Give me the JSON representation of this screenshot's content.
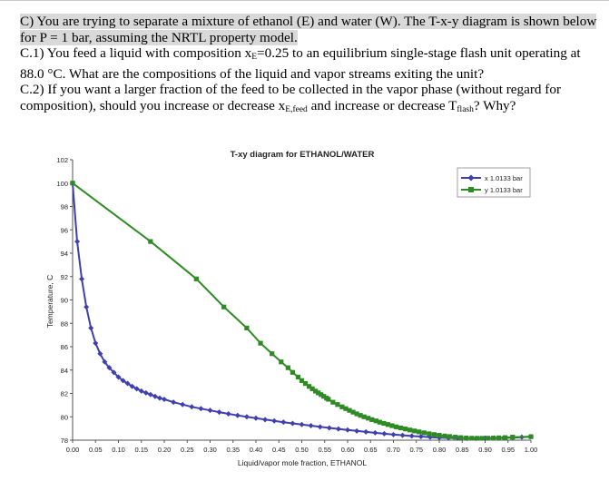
{
  "question": {
    "q_intro": "C) You are trying to separate a mixture of ethanol (E) and water (W). The T-x-y diagram is shown below for P = 1 bar, assuming the NRTL property model.",
    "c1_a": "C.1) You feed a liquid with composition x",
    "c1_sub": "E",
    "c1_b": "=0.25 to an equilibrium single-stage flash unit operating at 88.0 °C. What are the compositions of the liquid and vapor streams exiting the unit?",
    "c2_a": "C.2) If you want a larger fraction of the feed to be collected in the vapor phase (without regard for composition), should you increase or decrease x",
    "c2_sub1": "E,feed",
    "c2_b": " and increase or decrease T",
    "c2_sub2": "flash",
    "c2_c": "? Why?"
  },
  "chart_data": {
    "type": "line",
    "title": "T-xy diagram for ETHANOL/WATER",
    "xlabel": "Liquid/vapor mole fraction, ETHANOL",
    "ylabel": "Temperature, C",
    "xlim": [
      0,
      1
    ],
    "ylim": [
      78,
      102
    ],
    "xticks": [
      "0.00",
      "0.05",
      "0.10",
      "0.15",
      "0.20",
      "0.25",
      "0.30",
      "0.35",
      "0.40",
      "0.45",
      "0.50",
      "0.55",
      "0.60",
      "0.65",
      "0.70",
      "0.75",
      "0.80",
      "0.85",
      "0.90",
      "0.95",
      "1.00"
    ],
    "yticks": [
      "78",
      "80",
      "82",
      "84",
      "86",
      "88",
      "90",
      "92",
      "94",
      "96",
      "98",
      "100",
      "102"
    ],
    "legend_position": "top-right",
    "series": [
      {
        "name": "x 1.0133 bar",
        "color": "#3f3faf",
        "marker": "diamond",
        "points": [
          [
            0.0,
            100.0
          ],
          [
            0.01,
            95.0
          ],
          [
            0.02,
            91.8
          ],
          [
            0.03,
            89.4
          ],
          [
            0.04,
            87.6
          ],
          [
            0.05,
            86.3
          ],
          [
            0.06,
            85.4
          ],
          [
            0.07,
            84.7
          ],
          [
            0.08,
            84.2
          ],
          [
            0.09,
            83.8
          ],
          [
            0.1,
            83.4
          ],
          [
            0.11,
            83.1
          ],
          [
            0.12,
            82.85
          ],
          [
            0.13,
            82.6
          ],
          [
            0.14,
            82.4
          ],
          [
            0.15,
            82.2
          ],
          [
            0.16,
            82.05
          ],
          [
            0.17,
            81.9
          ],
          [
            0.18,
            81.75
          ],
          [
            0.19,
            81.6
          ],
          [
            0.2,
            81.5
          ],
          [
            0.22,
            81.25
          ],
          [
            0.24,
            81.05
          ],
          [
            0.26,
            80.85
          ],
          [
            0.28,
            80.7
          ],
          [
            0.3,
            80.55
          ],
          [
            0.32,
            80.4
          ],
          [
            0.34,
            80.25
          ],
          [
            0.36,
            80.12
          ],
          [
            0.38,
            80.0
          ],
          [
            0.4,
            79.88
          ],
          [
            0.42,
            79.76
          ],
          [
            0.44,
            79.65
          ],
          [
            0.46,
            79.54
          ],
          [
            0.48,
            79.44
          ],
          [
            0.5,
            79.34
          ],
          [
            0.52,
            79.24
          ],
          [
            0.54,
            79.14
          ],
          [
            0.56,
            79.05
          ],
          [
            0.58,
            78.96
          ],
          [
            0.6,
            78.87
          ],
          [
            0.62,
            78.79
          ],
          [
            0.64,
            78.71
          ],
          [
            0.66,
            78.63
          ],
          [
            0.68,
            78.55
          ],
          [
            0.7,
            78.48
          ],
          [
            0.72,
            78.42
          ],
          [
            0.74,
            78.36
          ],
          [
            0.76,
            78.31
          ],
          [
            0.78,
            78.26
          ],
          [
            0.8,
            78.22
          ],
          [
            0.82,
            78.19
          ],
          [
            0.84,
            78.17
          ],
          [
            0.86,
            78.16
          ],
          [
            0.88,
            78.16
          ],
          [
            0.9,
            78.17
          ],
          [
            0.92,
            78.18
          ],
          [
            0.94,
            78.2
          ],
          [
            0.96,
            78.22
          ],
          [
            0.98,
            78.26
          ],
          [
            1.0,
            78.3
          ]
        ]
      },
      {
        "name": "y 1.0133 bar",
        "color": "#2e8b24",
        "marker": "square",
        "points": [
          [
            0.0,
            100.0
          ],
          [
            0.17,
            95.0
          ],
          [
            0.27,
            91.8
          ],
          [
            0.33,
            89.4
          ],
          [
            0.38,
            87.6
          ],
          [
            0.41,
            86.3
          ],
          [
            0.435,
            85.4
          ],
          [
            0.455,
            84.7
          ],
          [
            0.47,
            84.2
          ],
          [
            0.48,
            83.8
          ],
          [
            0.492,
            83.4
          ],
          [
            0.5,
            83.1
          ],
          [
            0.508,
            82.85
          ],
          [
            0.516,
            82.6
          ],
          [
            0.523,
            82.4
          ],
          [
            0.53,
            82.2
          ],
          [
            0.536,
            82.05
          ],
          [
            0.542,
            81.9
          ],
          [
            0.548,
            81.75
          ],
          [
            0.554,
            81.6
          ],
          [
            0.558,
            81.5
          ],
          [
            0.568,
            81.25
          ],
          [
            0.578,
            81.05
          ],
          [
            0.588,
            80.85
          ],
          [
            0.596,
            80.7
          ],
          [
            0.604,
            80.55
          ],
          [
            0.612,
            80.4
          ],
          [
            0.62,
            80.25
          ],
          [
            0.628,
            80.12
          ],
          [
            0.636,
            80.0
          ],
          [
            0.645,
            79.88
          ],
          [
            0.653,
            79.76
          ],
          [
            0.662,
            79.65
          ],
          [
            0.67,
            79.54
          ],
          [
            0.679,
            79.44
          ],
          [
            0.688,
            79.34
          ],
          [
            0.697,
            79.24
          ],
          [
            0.706,
            79.14
          ],
          [
            0.716,
            79.05
          ],
          [
            0.726,
            78.96
          ],
          [
            0.736,
            78.87
          ],
          [
            0.746,
            78.79
          ],
          [
            0.756,
            78.71
          ],
          [
            0.767,
            78.63
          ],
          [
            0.778,
            78.55
          ],
          [
            0.789,
            78.48
          ],
          [
            0.8,
            78.42
          ],
          [
            0.812,
            78.36
          ],
          [
            0.823,
            78.31
          ],
          [
            0.835,
            78.26
          ],
          [
            0.847,
            78.22
          ],
          [
            0.859,
            78.19
          ],
          [
            0.871,
            78.17
          ],
          [
            0.883,
            78.16
          ],
          [
            0.894,
            78.16
          ],
          [
            0.906,
            78.17
          ],
          [
            0.918,
            78.18
          ],
          [
            0.93,
            78.2
          ],
          [
            0.944,
            78.22
          ],
          [
            0.96,
            78.26
          ],
          [
            1.0,
            78.3
          ]
        ]
      }
    ]
  }
}
